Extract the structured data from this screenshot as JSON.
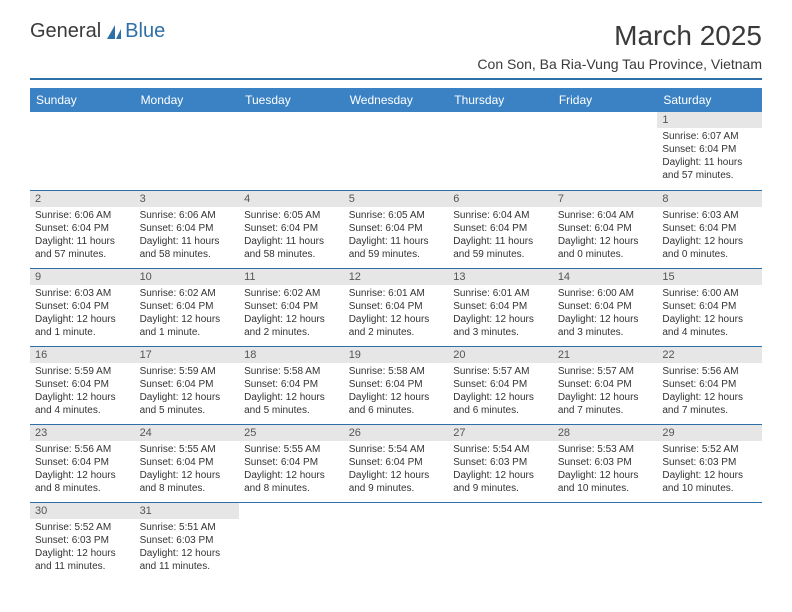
{
  "logo": {
    "part1": "General",
    "part2": "Blue"
  },
  "title": "March 2025",
  "location": "Con Son, Ba Ria-Vung Tau Province, Vietnam",
  "colors": {
    "header_bg": "#3b82c4",
    "header_text": "#ffffff",
    "border": "#2f6fa8",
    "daynum_bg": "#e6e6e6",
    "text": "#333333",
    "logo_blue": "#2f6fa8"
  },
  "weekdays": [
    "Sunday",
    "Monday",
    "Tuesday",
    "Wednesday",
    "Thursday",
    "Friday",
    "Saturday"
  ],
  "weeks": [
    [
      null,
      null,
      null,
      null,
      null,
      null,
      {
        "n": "1",
        "sr": "Sunrise: 6:07 AM",
        "ss": "Sunset: 6:04 PM",
        "dl": "Daylight: 11 hours and 57 minutes."
      }
    ],
    [
      {
        "n": "2",
        "sr": "Sunrise: 6:06 AM",
        "ss": "Sunset: 6:04 PM",
        "dl": "Daylight: 11 hours and 57 minutes."
      },
      {
        "n": "3",
        "sr": "Sunrise: 6:06 AM",
        "ss": "Sunset: 6:04 PM",
        "dl": "Daylight: 11 hours and 58 minutes."
      },
      {
        "n": "4",
        "sr": "Sunrise: 6:05 AM",
        "ss": "Sunset: 6:04 PM",
        "dl": "Daylight: 11 hours and 58 minutes."
      },
      {
        "n": "5",
        "sr": "Sunrise: 6:05 AM",
        "ss": "Sunset: 6:04 PM",
        "dl": "Daylight: 11 hours and 59 minutes."
      },
      {
        "n": "6",
        "sr": "Sunrise: 6:04 AM",
        "ss": "Sunset: 6:04 PM",
        "dl": "Daylight: 11 hours and 59 minutes."
      },
      {
        "n": "7",
        "sr": "Sunrise: 6:04 AM",
        "ss": "Sunset: 6:04 PM",
        "dl": "Daylight: 12 hours and 0 minutes."
      },
      {
        "n": "8",
        "sr": "Sunrise: 6:03 AM",
        "ss": "Sunset: 6:04 PM",
        "dl": "Daylight: 12 hours and 0 minutes."
      }
    ],
    [
      {
        "n": "9",
        "sr": "Sunrise: 6:03 AM",
        "ss": "Sunset: 6:04 PM",
        "dl": "Daylight: 12 hours and 1 minute."
      },
      {
        "n": "10",
        "sr": "Sunrise: 6:02 AM",
        "ss": "Sunset: 6:04 PM",
        "dl": "Daylight: 12 hours and 1 minute."
      },
      {
        "n": "11",
        "sr": "Sunrise: 6:02 AM",
        "ss": "Sunset: 6:04 PM",
        "dl": "Daylight: 12 hours and 2 minutes."
      },
      {
        "n": "12",
        "sr": "Sunrise: 6:01 AM",
        "ss": "Sunset: 6:04 PM",
        "dl": "Daylight: 12 hours and 2 minutes."
      },
      {
        "n": "13",
        "sr": "Sunrise: 6:01 AM",
        "ss": "Sunset: 6:04 PM",
        "dl": "Daylight: 12 hours and 3 minutes."
      },
      {
        "n": "14",
        "sr": "Sunrise: 6:00 AM",
        "ss": "Sunset: 6:04 PM",
        "dl": "Daylight: 12 hours and 3 minutes."
      },
      {
        "n": "15",
        "sr": "Sunrise: 6:00 AM",
        "ss": "Sunset: 6:04 PM",
        "dl": "Daylight: 12 hours and 4 minutes."
      }
    ],
    [
      {
        "n": "16",
        "sr": "Sunrise: 5:59 AM",
        "ss": "Sunset: 6:04 PM",
        "dl": "Daylight: 12 hours and 4 minutes."
      },
      {
        "n": "17",
        "sr": "Sunrise: 5:59 AM",
        "ss": "Sunset: 6:04 PM",
        "dl": "Daylight: 12 hours and 5 minutes."
      },
      {
        "n": "18",
        "sr": "Sunrise: 5:58 AM",
        "ss": "Sunset: 6:04 PM",
        "dl": "Daylight: 12 hours and 5 minutes."
      },
      {
        "n": "19",
        "sr": "Sunrise: 5:58 AM",
        "ss": "Sunset: 6:04 PM",
        "dl": "Daylight: 12 hours and 6 minutes."
      },
      {
        "n": "20",
        "sr": "Sunrise: 5:57 AM",
        "ss": "Sunset: 6:04 PM",
        "dl": "Daylight: 12 hours and 6 minutes."
      },
      {
        "n": "21",
        "sr": "Sunrise: 5:57 AM",
        "ss": "Sunset: 6:04 PM",
        "dl": "Daylight: 12 hours and 7 minutes."
      },
      {
        "n": "22",
        "sr": "Sunrise: 5:56 AM",
        "ss": "Sunset: 6:04 PM",
        "dl": "Daylight: 12 hours and 7 minutes."
      }
    ],
    [
      {
        "n": "23",
        "sr": "Sunrise: 5:56 AM",
        "ss": "Sunset: 6:04 PM",
        "dl": "Daylight: 12 hours and 8 minutes."
      },
      {
        "n": "24",
        "sr": "Sunrise: 5:55 AM",
        "ss": "Sunset: 6:04 PM",
        "dl": "Daylight: 12 hours and 8 minutes."
      },
      {
        "n": "25",
        "sr": "Sunrise: 5:55 AM",
        "ss": "Sunset: 6:04 PM",
        "dl": "Daylight: 12 hours and 8 minutes."
      },
      {
        "n": "26",
        "sr": "Sunrise: 5:54 AM",
        "ss": "Sunset: 6:04 PM",
        "dl": "Daylight: 12 hours and 9 minutes."
      },
      {
        "n": "27",
        "sr": "Sunrise: 5:54 AM",
        "ss": "Sunset: 6:03 PM",
        "dl": "Daylight: 12 hours and 9 minutes."
      },
      {
        "n": "28",
        "sr": "Sunrise: 5:53 AM",
        "ss": "Sunset: 6:03 PM",
        "dl": "Daylight: 12 hours and 10 minutes."
      },
      {
        "n": "29",
        "sr": "Sunrise: 5:52 AM",
        "ss": "Sunset: 6:03 PM",
        "dl": "Daylight: 12 hours and 10 minutes."
      }
    ],
    [
      {
        "n": "30",
        "sr": "Sunrise: 5:52 AM",
        "ss": "Sunset: 6:03 PM",
        "dl": "Daylight: 12 hours and 11 minutes."
      },
      {
        "n": "31",
        "sr": "Sunrise: 5:51 AM",
        "ss": "Sunset: 6:03 PM",
        "dl": "Daylight: 12 hours and 11 minutes."
      },
      null,
      null,
      null,
      null,
      null
    ]
  ]
}
